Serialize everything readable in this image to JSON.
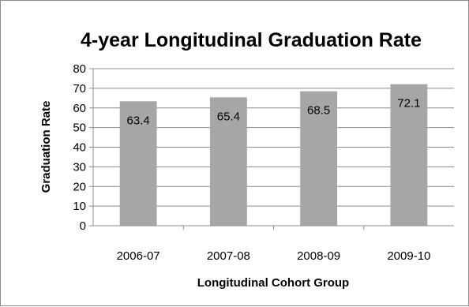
{
  "chart_data": {
    "type": "bar",
    "title": "4-year Longitudinal Graduation Rate",
    "xlabel": "Longitudinal Cohort Group",
    "ylabel": "Graduation Rate",
    "categories": [
      "2006-07",
      "2007-08",
      "2008-09",
      "2009-10"
    ],
    "values": [
      63.4,
      65.4,
      68.5,
      72.1
    ],
    "data_labels": [
      "63.4",
      "65.4",
      "68.5",
      "72.1"
    ],
    "ylim": [
      0,
      80
    ],
    "yticks": [
      "0",
      "10",
      "20",
      "30",
      "40",
      "50",
      "60",
      "70",
      "80"
    ],
    "grid": true,
    "legend": "none",
    "bar_color": "#a6a6a6",
    "grid_color": "#8c8c8c"
  }
}
